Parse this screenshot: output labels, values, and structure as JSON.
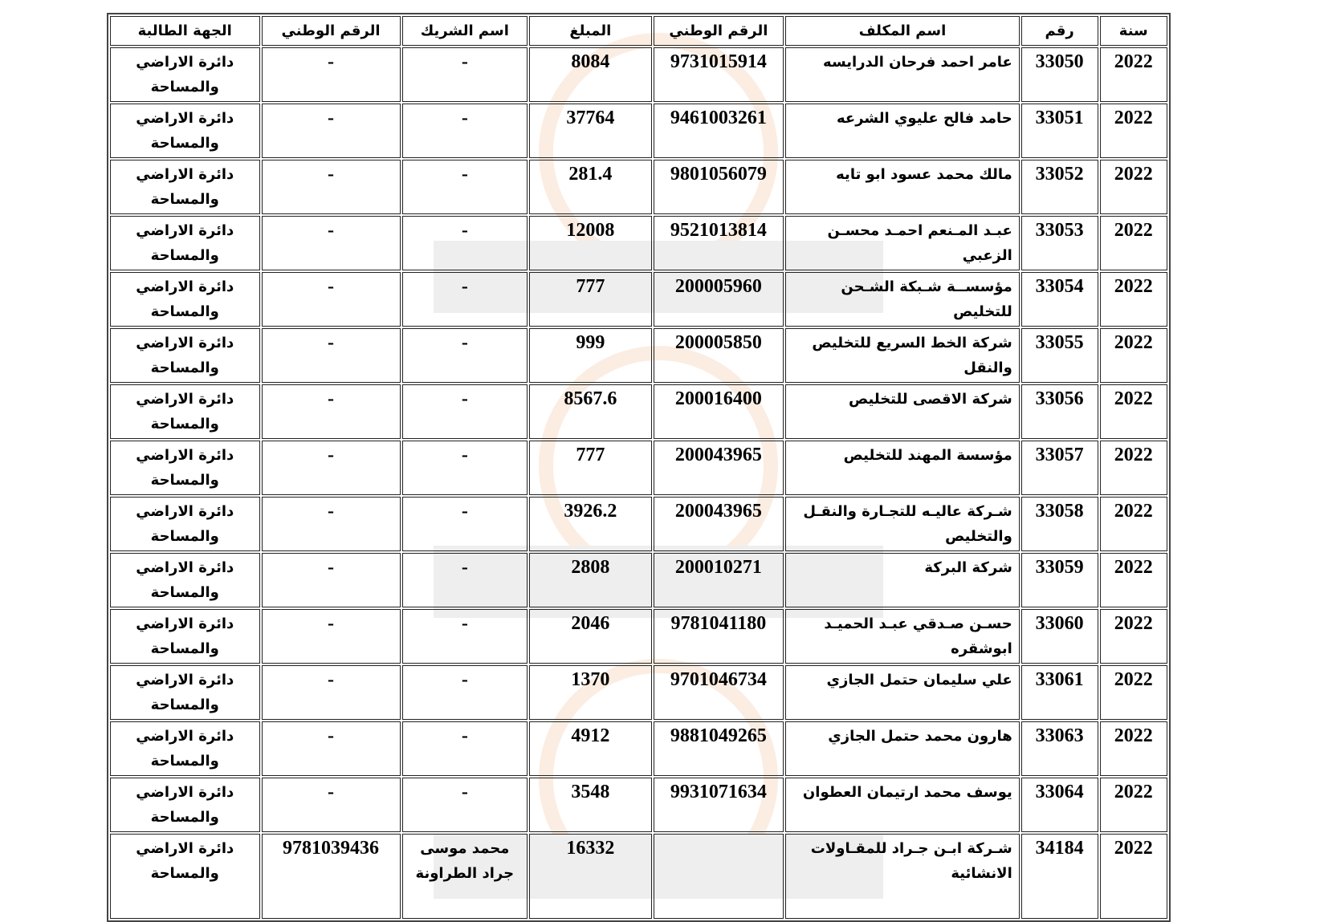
{
  "table": {
    "headers": [
      "سنة",
      "رقم",
      "اسم المكلف",
      "الرقم الوطني",
      "المبلغ",
      "اسم الشريك",
      "الرقم الوطني",
      "الجهة الطالبة"
    ],
    "rows": [
      [
        "2022",
        "33050",
        "عامر احمد فرحان الدرايسه",
        "9731015914",
        "8084",
        "-",
        "-",
        "دائرة الاراضي والمساحة"
      ],
      [
        "2022",
        "33051",
        "حامد فالح عليوي الشرعه",
        "9461003261",
        "37764",
        "-",
        "-",
        "دائرة الاراضي والمساحة"
      ],
      [
        "2022",
        "33052",
        "مالك محمد عسود ابو تايه",
        "9801056079",
        "281.4",
        "-",
        "-",
        "دائرة الاراضي والمساحة"
      ],
      [
        "2022",
        "33053",
        "عبـد المـنعم احمـد محسـن الزعبي",
        "9521013814",
        "12008",
        "-",
        "-",
        "دائرة الاراضي والمساحة"
      ],
      [
        "2022",
        "33054",
        "مؤسســة شـبكة الشـحن للتخليص",
        "200005960",
        "777",
        "-",
        "-",
        "دائرة الاراضي والمساحة"
      ],
      [
        "2022",
        "33055",
        "شركة الخط السريع للتخليص والنقل",
        "200005850",
        "999",
        "-",
        "-",
        "دائرة الاراضي والمساحة"
      ],
      [
        "2022",
        "33056",
        "شركة الاقصى للتخليص",
        "200016400",
        "8567.6",
        "-",
        "-",
        "دائرة الاراضي والمساحة"
      ],
      [
        "2022",
        "33057",
        "مؤسسة المهند للتخليص",
        "200043965",
        "777",
        "-",
        "-",
        "دائرة الاراضي والمساحة"
      ],
      [
        "2022",
        "33058",
        "شـركة عاليـه للتجـارة والنقـل والتخليص",
        "200043965",
        "3926.2",
        "-",
        "-",
        "دائرة الاراضي والمساحة"
      ],
      [
        "2022",
        "33059",
        "شركة البركة",
        "200010271",
        "2808",
        "-",
        "-",
        "دائرة الاراضي والمساحة"
      ],
      [
        "2022",
        "33060",
        "حسـن صـدقي عبـد الحميـد ابوشقره",
        "9781041180",
        "2046",
        "-",
        "-",
        "دائرة الاراضي والمساحة"
      ],
      [
        "2022",
        "33061",
        "علي سليمان حتمل الجازي",
        "9701046734",
        "1370",
        "-",
        "-",
        "دائرة الاراضي والمساحة"
      ],
      [
        "2022",
        "33063",
        "هارون محمد حتمل الجازي",
        "9881049265",
        "4912",
        "-",
        "-",
        "دائرة الاراضي والمساحة"
      ],
      [
        "2022",
        "33064",
        "يوسف محمد ارتيمان العطوان",
        "9931071634",
        "3548",
        "-",
        "-",
        "دائرة الاراضي والمساحة"
      ],
      [
        "2022",
        "34184",
        "شـركة ابـن جـراد للمقـاولات الانشائية",
        "",
        "16332",
        "محمد موسى جراد الطراونة",
        "9781039436",
        "دائرة الاراضي والمساحة"
      ]
    ]
  },
  "watermark": {
    "text": "مدار الساعة الاخبارية",
    "colors": [
      "#e8782a",
      "#808080"
    ]
  }
}
